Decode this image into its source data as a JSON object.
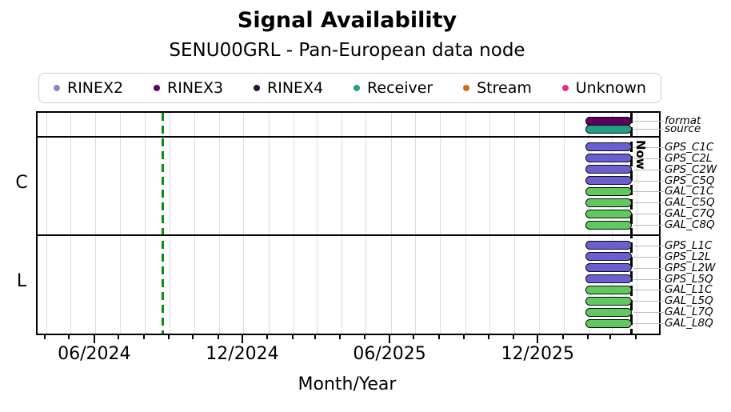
{
  "title": "Signal Availability",
  "subtitle": "SENU00GRL - Pan-European data node",
  "legend": {
    "items": [
      {
        "label": "RINEX2",
        "color": "#8d85c6"
      },
      {
        "label": "RINEX3",
        "color": "#5e0060"
      },
      {
        "label": "RINEX4",
        "color": "#2a0f35"
      },
      {
        "label": "Receiver",
        "color": "#1fa184"
      },
      {
        "label": "Stream",
        "color": "#d2691e"
      },
      {
        "label": "Unknown",
        "color": "#e7298a"
      }
    ]
  },
  "chart_data": {
    "type": "bar",
    "subtype": "gantt-availability-timeline",
    "title": "Signal Availability",
    "subtitle": "SENU00GRL - Pan-European data node",
    "x_axis": {
      "label": "Month/Year",
      "range_start": "2024-03-21",
      "range_end": "2026-04-28",
      "major_ticks": [
        {
          "label": "06/2024",
          "date": "2024-06-01"
        },
        {
          "label": "12/2024",
          "date": "2024-12-01"
        },
        {
          "label": "06/2025",
          "date": "2025-06-01"
        },
        {
          "label": "12/2025",
          "date": "2025-12-01"
        }
      ],
      "minor_tick_interval": "month",
      "grid": "monthly-vertical"
    },
    "now_marker": {
      "label": "Now",
      "date": "2026-03-25",
      "color": "#000000",
      "style": "dashed"
    },
    "event_marker": {
      "date": "2024-08-23",
      "color": "#0a8f0a",
      "style": "dashed"
    },
    "colors": {
      "gps_bar": "#6a5fd1",
      "gal_bar": "#5fc95f",
      "format_bar": "#5e0060",
      "source_bar": "#1fa184"
    },
    "groups": [
      {
        "name": "",
        "rows": [
          {
            "label": "format",
            "start": "2026-01-27",
            "end": "2026-03-25",
            "color": "#5e0060"
          },
          {
            "label": "source",
            "start": "2026-01-27",
            "end": "2026-03-25",
            "color": "#1fa184"
          }
        ]
      },
      {
        "name": "C",
        "rows": [
          {
            "label": "GPS_C1C",
            "start": "2026-01-27",
            "end": "2026-03-25",
            "color": "#6a5fd1"
          },
          {
            "label": "GPS_C2L",
            "start": "2026-01-27",
            "end": "2026-03-25",
            "color": "#6a5fd1"
          },
          {
            "label": "GPS_C2W",
            "start": "2026-01-27",
            "end": "2026-03-25",
            "color": "#6a5fd1"
          },
          {
            "label": "GPS_C5Q",
            "start": "2026-01-27",
            "end": "2026-03-25",
            "color": "#6a5fd1"
          },
          {
            "label": "GAL_C1C",
            "start": "2026-01-27",
            "end": "2026-03-25",
            "color": "#5fc95f"
          },
          {
            "label": "GAL_C5Q",
            "start": "2026-01-27",
            "end": "2026-03-25",
            "color": "#5fc95f"
          },
          {
            "label": "GAL_C7Q",
            "start": "2026-01-27",
            "end": "2026-03-25",
            "color": "#5fc95f"
          },
          {
            "label": "GAL_C8Q",
            "start": "2026-01-27",
            "end": "2026-03-25",
            "color": "#5fc95f"
          }
        ]
      },
      {
        "name": "L",
        "rows": [
          {
            "label": "GPS_L1C",
            "start": "2026-01-27",
            "end": "2026-03-25",
            "color": "#6a5fd1"
          },
          {
            "label": "GPS_L2L",
            "start": "2026-01-27",
            "end": "2026-03-25",
            "color": "#6a5fd1"
          },
          {
            "label": "GPS_L2W",
            "start": "2026-01-27",
            "end": "2026-03-25",
            "color": "#6a5fd1"
          },
          {
            "label": "GPS_L5Q",
            "start": "2026-01-27",
            "end": "2026-03-25",
            "color": "#6a5fd1"
          },
          {
            "label": "GAL_L1C",
            "start": "2026-01-27",
            "end": "2026-03-25",
            "color": "#5fc95f"
          },
          {
            "label": "GAL_L5Q",
            "start": "2026-01-27",
            "end": "2026-03-25",
            "color": "#5fc95f"
          },
          {
            "label": "GAL_L7Q",
            "start": "2026-01-27",
            "end": "2026-03-25",
            "color": "#5fc95f"
          },
          {
            "label": "GAL_L8Q",
            "start": "2026-01-27",
            "end": "2026-03-25",
            "color": "#5fc95f"
          }
        ]
      }
    ]
  }
}
